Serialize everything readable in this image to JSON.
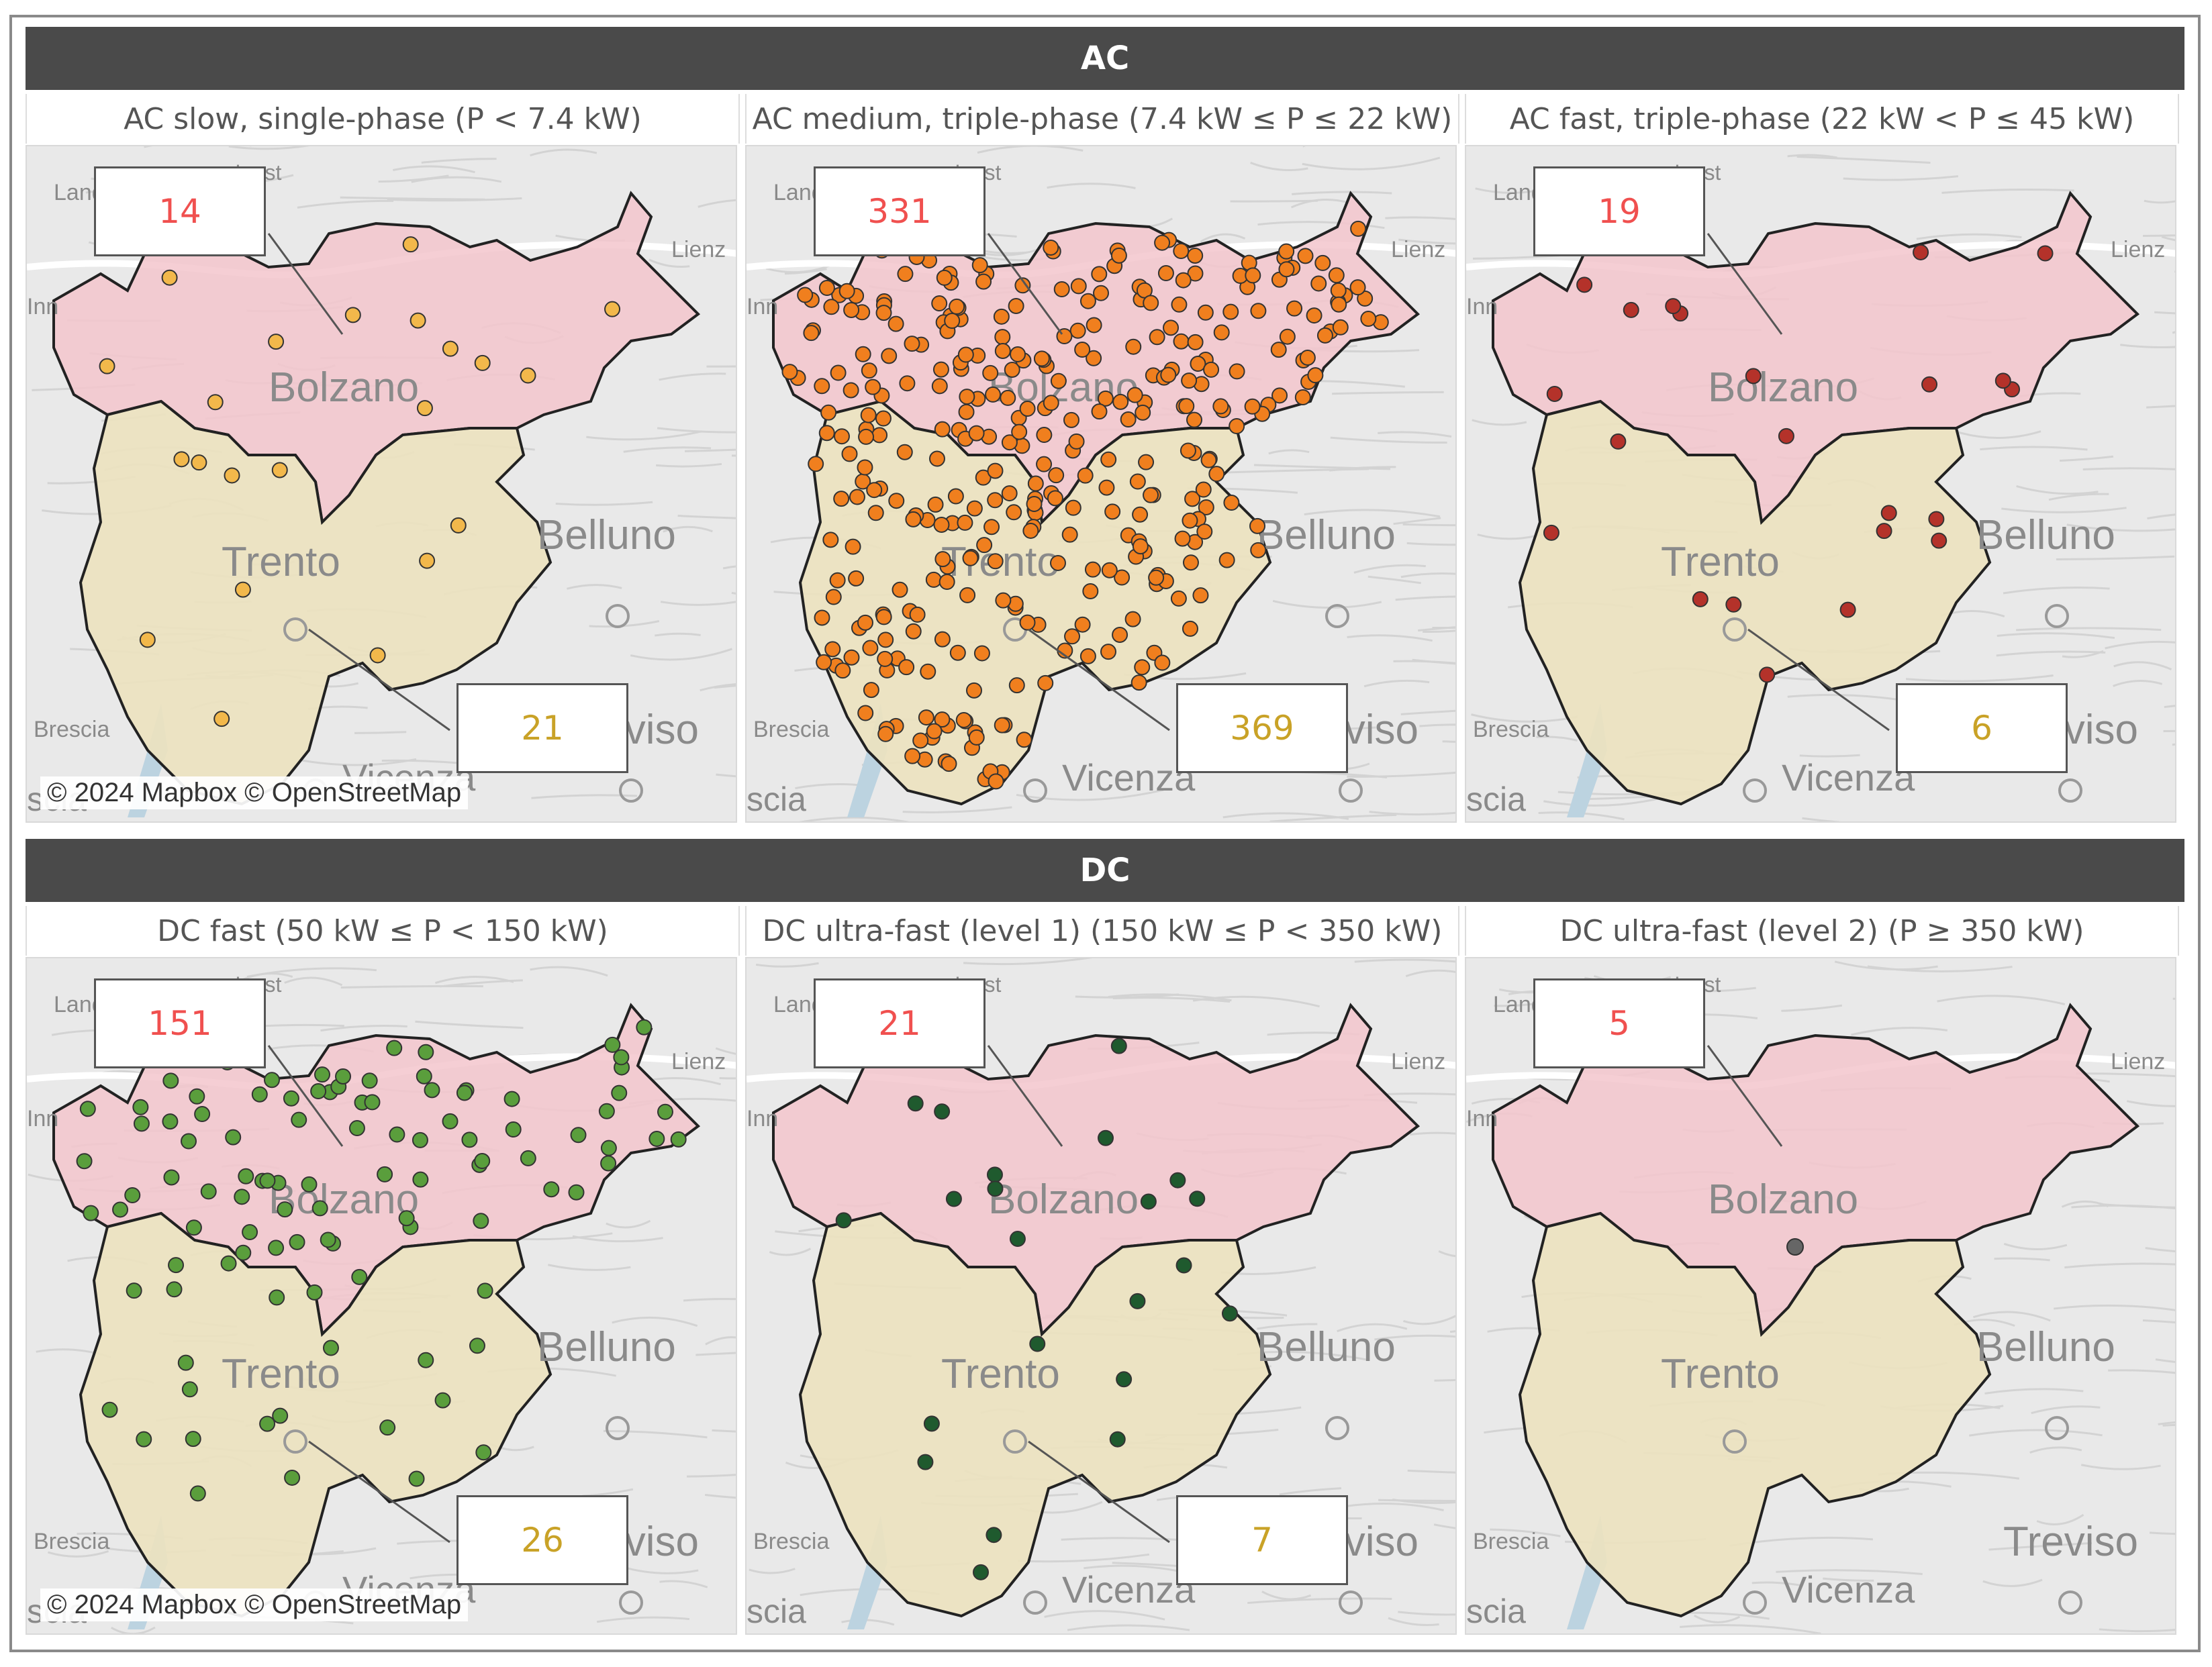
{
  "groups": [
    {
      "title": "AC",
      "panels": [
        {
          "title": "AC slow, single-phase (P < 7.4 kW)",
          "count_bolzano": "14",
          "count_trento": "21",
          "dot_color": "#f2b84b",
          "density": "low",
          "copyright": "© 2024 Mapbox © OpenStreetMap"
        },
        {
          "title": "AC medium, triple-phase (7.4 kW ≤ P ≤ 22 kW)",
          "count_bolzano": "331",
          "count_trento": "369",
          "dot_color": "#f07f1e",
          "density": "high",
          "copyright": ""
        },
        {
          "title": "AC fast, triple-phase (22 kW < P ≤ 45 kW)",
          "count_bolzano": "19",
          "count_trento": "6",
          "dot_color": "#b4322a",
          "density": "low",
          "copyright": ""
        }
      ]
    },
    {
      "title": "DC",
      "panels": [
        {
          "title": "DC fast (50 kW ≤ P < 150 kW)",
          "count_bolzano": "151",
          "count_trento": "26",
          "dot_color": "#5a9e3c",
          "density": "medium",
          "copyright": "© 2024 Mapbox © OpenStreetMap"
        },
        {
          "title": "DC ultra-fast (level 1) (150 kW ≤ P < 350 kW)",
          "count_bolzano": "21",
          "count_trento": "7",
          "dot_color": "#1f5a2e",
          "density": "low",
          "copyright": ""
        },
        {
          "title": "DC ultra-fast (level 2) (P ≥ 350 kW)",
          "count_bolzano": "5",
          "count_trento": "",
          "dot_color": "#666666",
          "density": "single",
          "copyright": ""
        }
      ]
    }
  ],
  "map_labels": {
    "bolzano": "Bolzano",
    "trento": "Trento",
    "belluno": "Belluno",
    "treviso": "Treviso",
    "vicenza": "Vicenza",
    "brescia": "Brescia",
    "landeck": "Landeck",
    "lienz": "Lienz",
    "inn": "Inn",
    "innst": "Innst",
    "scia": "scia"
  },
  "colors": {
    "bolzano_fill": "#f3c6cc",
    "trento_fill": "#ece2bf",
    "header_bg": "#4a4a4a",
    "north_count": "#f0504f",
    "south_count": "#c9a227"
  }
}
